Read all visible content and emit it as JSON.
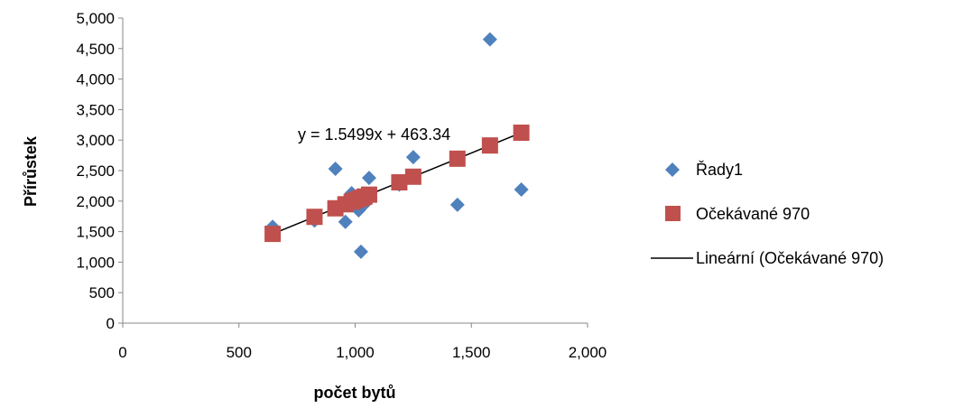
{
  "chart_data": {
    "type": "scatter",
    "xlabel": "počet bytů",
    "ylabel": "Přírůstek",
    "xlim": [
      0,
      2000
    ],
    "ylim": [
      0,
      5000
    ],
    "xticks": [
      "0",
      "500",
      "1,000",
      "1,500",
      "2,000"
    ],
    "yticks": [
      "0",
      "500",
      "1,000",
      "1,500",
      "2,000",
      "2,500",
      "3,000",
      "3,500",
      "4,000",
      "4,500",
      "5,000"
    ],
    "trendline_equation": "y = 1.5499x + 463.34",
    "trendline": {
      "slope": 1.5499,
      "intercept": 463.34,
      "x_range": [
        645,
        1715
      ]
    },
    "legend_position": "right",
    "series": [
      {
        "name": "Řady1",
        "marker": "diamond",
        "color": "#4F81BD",
        "points": [
          [
            645,
            1580
          ],
          [
            825,
            1680
          ],
          [
            915,
            2530
          ],
          [
            958,
            1660
          ],
          [
            985,
            2130
          ],
          [
            1015,
            1850
          ],
          [
            1025,
            1170
          ],
          [
            1060,
            2380
          ],
          [
            1190,
            2270
          ],
          [
            1250,
            2720
          ],
          [
            1440,
            1940
          ],
          [
            1580,
            4650
          ],
          [
            1715,
            2190
          ],
          [
            1000,
            2000
          ],
          [
            1040,
            1950
          ]
        ]
      },
      {
        "name": "Očekávané 970",
        "marker": "square",
        "color": "#C0504D",
        "points": [
          [
            645,
            1463
          ],
          [
            825,
            1742
          ],
          [
            915,
            1882
          ],
          [
            958,
            1948
          ],
          [
            985,
            1990
          ],
          [
            1015,
            2037
          ],
          [
            1025,
            2052
          ],
          [
            1060,
            2106
          ],
          [
            1190,
            2308
          ],
          [
            1250,
            2400
          ],
          [
            1440,
            2695
          ],
          [
            1580,
            2912
          ],
          [
            1715,
            3121
          ],
          [
            1000,
            2013
          ],
          [
            1040,
            2075
          ]
        ]
      },
      {
        "name": "Lineární (Očekávané 970)",
        "marker": "line",
        "color": "#000000"
      }
    ]
  }
}
